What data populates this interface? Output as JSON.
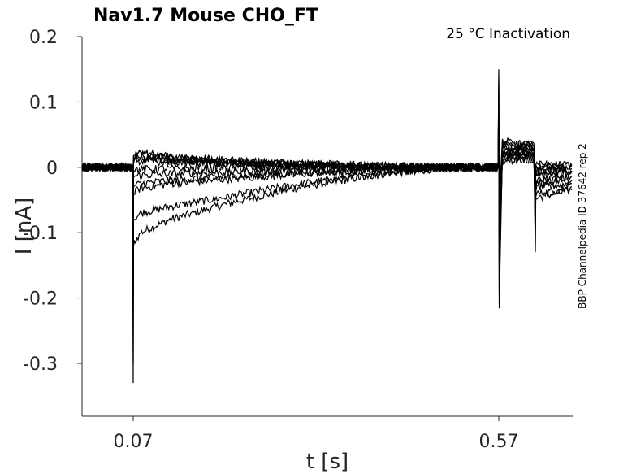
{
  "chart_data": {
    "type": "line",
    "title": "Nav1.7  Mouse  CHO_FT",
    "annotation": "25 °C  Inactivation",
    "side_label": "BBP Channelpedia ID 37642 rep 2",
    "xlabel": "t [s]",
    "ylabel": "I [nA]",
    "xlim": [
      0,
      0.67
    ],
    "ylim": [
      -0.36,
      0.2
    ],
    "x_ticks": [
      0.07,
      0.57
    ],
    "x_tick_labels": [
      "0.07",
      "0.57"
    ],
    "y_ticks": [
      0.2,
      0.1,
      0,
      -0.1,
      -0.2,
      -0.3
    ],
    "y_tick_labels": [
      "0.2",
      "0.1",
      "0",
      "-0.1",
      "-0.2",
      "-0.3"
    ],
    "grid": false,
    "line_color": "#000000",
    "trace_count": 11,
    "series": [
      {
        "x": [
          0,
          0.069,
          0.07,
          0.0705,
          0.072,
          0.08,
          0.12,
          0.2,
          0.3,
          0.4,
          0.5,
          0.569,
          0.57,
          0.5705,
          0.575,
          0.6,
          0.618,
          0.62,
          0.6205,
          0.625,
          0.65,
          0.67
        ],
        "y": [
          0,
          0,
          -0.33,
          -0.12,
          -0.115,
          -0.1,
          -0.08,
          -0.055,
          -0.03,
          -0.012,
          0.0,
          0.0,
          0.15,
          -0.21,
          0.03,
          0.03,
          0.03,
          -0.13,
          -0.05,
          -0.045,
          -0.04,
          -0.035
        ]
      },
      {
        "x": [
          0,
          0.069,
          0.07,
          0.0705,
          0.072,
          0.08,
          0.12,
          0.2,
          0.3,
          0.4,
          0.5,
          0.569,
          0.57,
          0.5705,
          0.575,
          0.6,
          0.618,
          0.62,
          0.6205,
          0.625,
          0.65,
          0.67
        ],
        "y": [
          0,
          0,
          -0.3,
          -0.08,
          -0.078,
          -0.07,
          -0.06,
          -0.045,
          -0.025,
          -0.01,
          0.0,
          0.0,
          0.14,
          -0.19,
          0.02,
          0.025,
          0.025,
          -0.12,
          -0.04,
          -0.04,
          -0.035,
          -0.03
        ]
      },
      {
        "x": [
          0,
          0.069,
          0.07,
          0.0705,
          0.072,
          0.08,
          0.12,
          0.2,
          0.3,
          0.4,
          0.5,
          0.569,
          0.57,
          0.5705,
          0.575,
          0.6,
          0.618,
          0.62,
          0.6205,
          0.625,
          0.65,
          0.67
        ],
        "y": [
          0,
          0,
          -0.2,
          -0.04,
          -0.038,
          -0.032,
          -0.025,
          -0.018,
          -0.01,
          -0.005,
          0.0,
          0.0,
          0.13,
          -0.17,
          0.04,
          0.035,
          0.035,
          -0.1,
          -0.035,
          -0.03,
          -0.028,
          -0.025
        ]
      },
      {
        "x": [
          0,
          0.069,
          0.07,
          0.0705,
          0.072,
          0.08,
          0.12,
          0.2,
          0.3,
          0.4,
          0.5,
          0.569,
          0.57,
          0.5705,
          0.575,
          0.6,
          0.618,
          0.62,
          0.6205,
          0.625,
          0.65,
          0.67
        ],
        "y": [
          0,
          0,
          -0.15,
          -0.03,
          -0.028,
          -0.025,
          -0.02,
          -0.014,
          -0.008,
          -0.004,
          0.0,
          0.0,
          0.12,
          -0.15,
          0.02,
          0.02,
          0.02,
          -0.09,
          -0.03,
          -0.025,
          -0.022,
          -0.02
        ]
      },
      {
        "x": [
          0,
          0.069,
          0.07,
          0.0705,
          0.072,
          0.08,
          0.12,
          0.2,
          0.3,
          0.4,
          0.5,
          0.569,
          0.57,
          0.5705,
          0.575,
          0.6,
          0.618,
          0.62,
          0.6205,
          0.625,
          0.65,
          0.67
        ],
        "y": [
          0,
          0,
          -0.1,
          -0.015,
          -0.014,
          -0.012,
          -0.01,
          -0.007,
          -0.004,
          -0.002,
          0.0,
          0.0,
          0.1,
          -0.12,
          0.015,
          0.018,
          0.018,
          -0.08,
          -0.02,
          -0.02,
          -0.018,
          -0.015
        ]
      },
      {
        "x": [
          0,
          0.069,
          0.07,
          0.0705,
          0.072,
          0.08,
          0.12,
          0.2,
          0.3,
          0.4,
          0.5,
          0.569,
          0.57,
          0.5705,
          0.575,
          0.6,
          0.618,
          0.62,
          0.6205,
          0.625,
          0.65,
          0.67
        ],
        "y": [
          0,
          0,
          -0.06,
          -0.005,
          -0.004,
          -0.003,
          -0.002,
          -0.001,
          0.0,
          0.0,
          0.0,
          0.0,
          0.08,
          -0.1,
          0.012,
          0.015,
          0.015,
          -0.06,
          -0.015,
          -0.012,
          -0.01,
          -0.008
        ]
      },
      {
        "x": [
          0,
          0.069,
          0.07,
          0.0705,
          0.072,
          0.08,
          0.12,
          0.2,
          0.3,
          0.4,
          0.5,
          0.569,
          0.57,
          0.5705,
          0.575,
          0.6,
          0.618,
          0.62,
          0.6205,
          0.625,
          0.65,
          0.67
        ],
        "y": [
          0,
          0,
          -0.03,
          0.005,
          0.008,
          0.01,
          0.008,
          0.005,
          0.003,
          0.001,
          0.0,
          0.0,
          0.06,
          -0.08,
          0.01,
          0.012,
          0.012,
          -0.05,
          -0.01,
          -0.008,
          -0.006,
          -0.005
        ]
      },
      {
        "x": [
          0,
          0.069,
          0.07,
          0.0705,
          0.072,
          0.08,
          0.12,
          0.2,
          0.3,
          0.4,
          0.5,
          0.569,
          0.57,
          0.5705,
          0.575,
          0.6,
          0.618,
          0.62,
          0.6205,
          0.625,
          0.65,
          0.67
        ],
        "y": [
          0,
          0,
          -0.02,
          0.01,
          0.012,
          0.014,
          0.01,
          0.006,
          0.003,
          0.001,
          0.0,
          0.0,
          0.05,
          -0.06,
          0.035,
          0.03,
          0.03,
          -0.04,
          -0.005,
          -0.004,
          -0.003,
          -0.002
        ]
      },
      {
        "x": [
          0,
          0.069,
          0.07,
          0.0705,
          0.072,
          0.08,
          0.12,
          0.2,
          0.3,
          0.4,
          0.5,
          0.569,
          0.57,
          0.5705,
          0.575,
          0.6,
          0.618,
          0.62,
          0.6205,
          0.625,
          0.65,
          0.67
        ],
        "y": [
          0,
          0,
          -0.01,
          0.012,
          0.015,
          0.016,
          0.012,
          0.008,
          0.004,
          0.002,
          0.0,
          0.0,
          0.04,
          -0.05,
          0.04,
          0.035,
          0.035,
          -0.035,
          -0.002,
          -0.001,
          0.0,
          0.0
        ]
      },
      {
        "x": [
          0,
          0.069,
          0.07,
          0.0705,
          0.072,
          0.08,
          0.12,
          0.2,
          0.3,
          0.4,
          0.5,
          0.569,
          0.57,
          0.5705,
          0.575,
          0.6,
          0.618,
          0.62,
          0.6205,
          0.625,
          0.65,
          0.67
        ],
        "y": [
          0,
          0,
          0.0,
          0.015,
          0.018,
          0.02,
          0.015,
          0.01,
          0.005,
          0.002,
          0.0,
          0.0,
          0.03,
          -0.04,
          0.03,
          0.028,
          0.028,
          -0.03,
          0.0,
          0.0,
          0.002,
          0.002
        ]
      },
      {
        "x": [
          0,
          0.069,
          0.07,
          0.0705,
          0.072,
          0.08,
          0.12,
          0.2,
          0.3,
          0.4,
          0.5,
          0.569,
          0.57,
          0.5705,
          0.575,
          0.6,
          0.618,
          0.62,
          0.6205,
          0.625,
          0.65,
          0.67
        ],
        "y": [
          0,
          0,
          0.005,
          0.018,
          0.02,
          0.022,
          0.016,
          0.01,
          0.006,
          0.003,
          0.0,
          0.0,
          0.02,
          -0.03,
          0.025,
          0.022,
          0.022,
          -0.02,
          0.005,
          0.004,
          0.004,
          0.003
        ]
      }
    ]
  }
}
